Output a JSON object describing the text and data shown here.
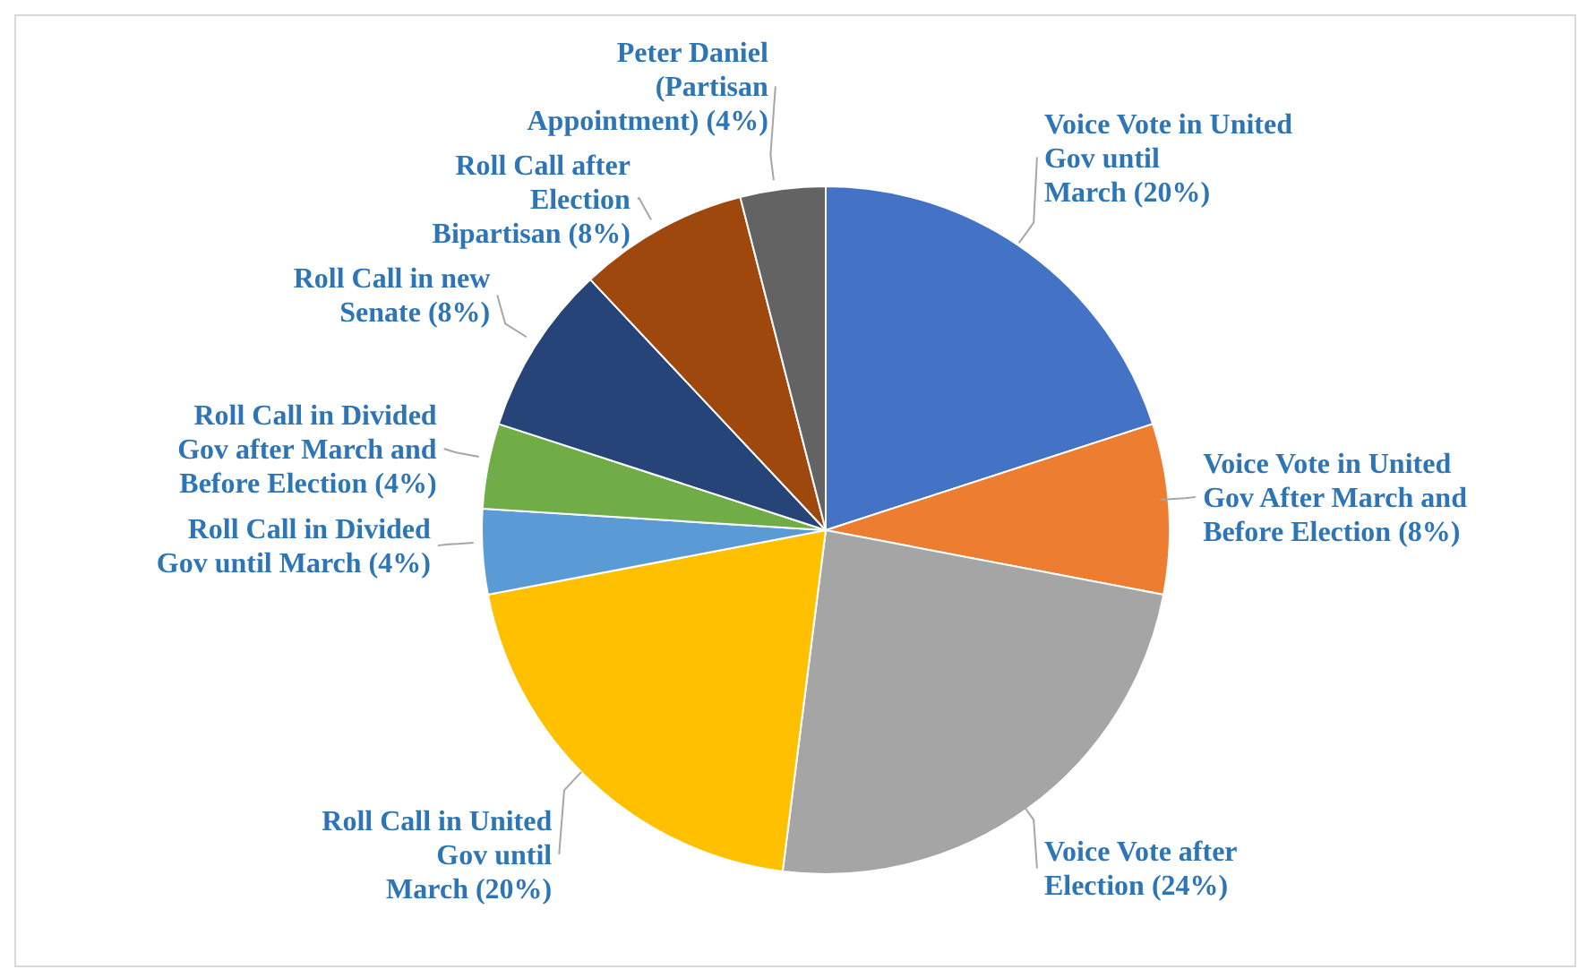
{
  "chart_data": {
    "type": "pie",
    "categories": [
      "Voice Vote in United Gov until March",
      "Voice Vote in United Gov After March and Before Election",
      "Voice Vote after Election",
      "Roll Call in United Gov until March",
      "Roll Call in Divided Gov until March",
      "Roll Call in Divided Gov after March and Before Election",
      "Roll Call in new Senate",
      "Roll Call after Election Bipartisan",
      "Peter Daniel (Partisan Appointment)"
    ],
    "values": [
      20,
      8,
      24,
      20,
      4,
      4,
      8,
      8,
      4
    ],
    "value_labels": [
      "(20%)",
      "(8%)",
      "(24%)",
      "(20%)",
      "(4%)",
      "(4%)",
      "(8%)",
      "(8%)",
      "(4%)"
    ],
    "colors": [
      "#4472c4",
      "#ed7d31",
      "#a5a5a5",
      "#ffc000",
      "#5b9bd5",
      "#70ad47",
      "#264478",
      "#9e480e",
      "#636363"
    ],
    "legend": false
  }
}
